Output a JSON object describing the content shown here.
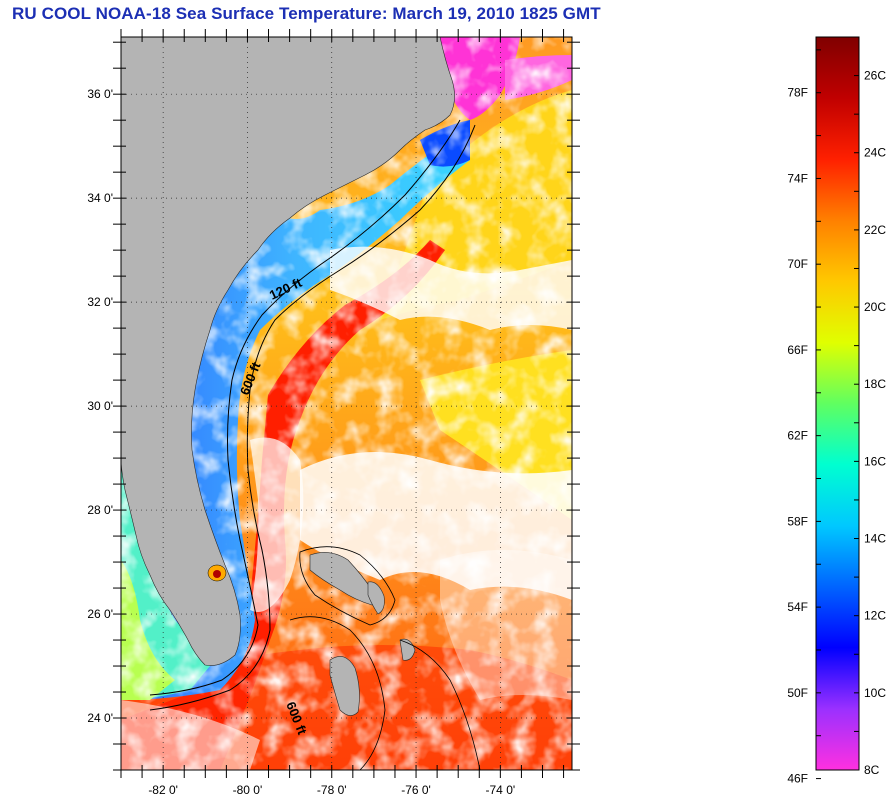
{
  "title": "RU COOL  NOAA-18  Sea Surface Temperature:  March 19, 2010 1825 GMT",
  "map": {
    "latitude_labels": [
      "36 0'",
      "34 0'",
      "32 0'",
      "30 0'",
      "28 0'",
      "26 0'",
      "24 0'"
    ],
    "latitude_values": [
      36,
      34,
      32,
      30,
      28,
      26,
      24
    ],
    "longitude_labels": [
      "-82 0'",
      "-80 0'",
      "-78 0'",
      "-76 0'",
      "-74 0'"
    ],
    "longitude_values": [
      -82,
      -80,
      -78,
      -76,
      -74
    ],
    "lon_range": [
      -83,
      -72.3
    ],
    "lat_range": [
      23,
      37.1
    ],
    "contour_labels": [
      "120 ft",
      "600 ft",
      "600 ft"
    ],
    "colors": {
      "land": "#b4b4b4",
      "cloud": "#ffffff",
      "gulf_stream": "#ff1a00",
      "warm_sargasso": "#ff8c1a",
      "coastal_cool": "#1e9bff",
      "cold_north": "#ff30d0"
    }
  },
  "colorbar": {
    "fahrenheit_labels": [
      "78F",
      "74F",
      "70F",
      "66F",
      "62F",
      "58F",
      "54F",
      "50F",
      "46F"
    ],
    "fahrenheit_values": [
      78,
      74,
      70,
      66,
      62,
      58,
      54,
      50,
      46
    ],
    "celsius_labels": [
      "26C",
      "24C",
      "22C",
      "20C",
      "18C",
      "16C",
      "14C",
      "12C",
      "10C",
      "8C"
    ],
    "celsius_values": [
      26,
      24,
      22,
      20,
      18,
      16,
      14,
      12,
      10,
      8
    ],
    "range_c": [
      8,
      27
    ],
    "gradient_colors": [
      "#ff30e0",
      "#9b30ff",
      "#0000ff",
      "#0064ff",
      "#00c8ff",
      "#00ffd0",
      "#60ff60",
      "#e0ff00",
      "#ffc800",
      "#ff8000",
      "#ff2000",
      "#c00000",
      "#800000"
    ]
  }
}
